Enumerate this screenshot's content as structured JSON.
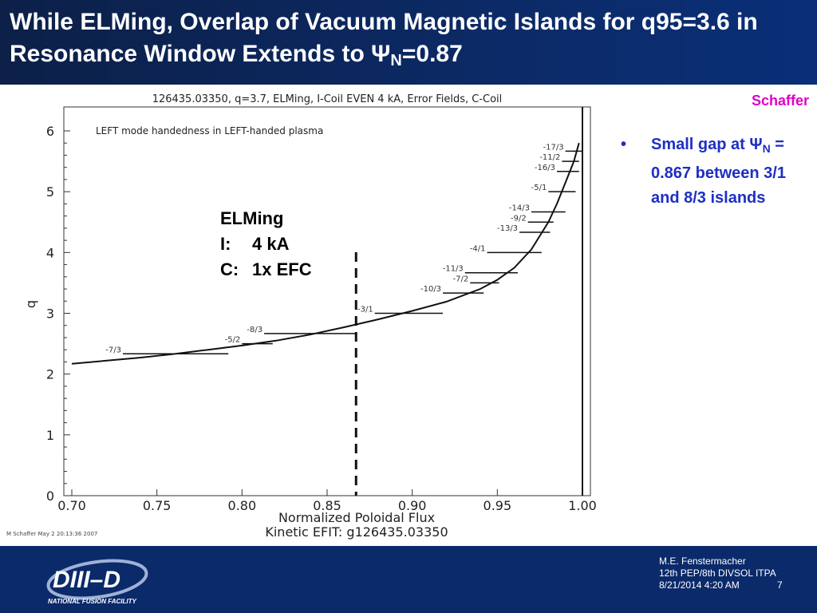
{
  "slide": {
    "title_prefix": "While ELMing, Overlap of Vacuum Magnetic Islands for q95=3.6 in Resonance Window Extends to ",
    "title_psi": "Ψ",
    "title_psi_sub": "N",
    "title_suffix": "=0.87",
    "author": "Schaffer",
    "bullet": {
      "marker": "•",
      "pre": "Small gap at ",
      "psi": "Ψ",
      "psi_sub": "N",
      "post": " = 0.867 between 3/1 and 8/3 islands"
    },
    "footer": {
      "line1": "M.E. Fenstermacher",
      "line2": "12th PEP/8th DIVSOL ITPA",
      "line3": "8/21/2014 4:20 AM",
      "page": "7",
      "logo_text": "DIII–D",
      "logo_subtext": "NATIONAL FUSION FACILITY"
    }
  },
  "chart_data": {
    "type": "scatter",
    "title": "126435.03350, q=3.7, ELMing, I-Coil EVEN 4 kA, Error Fields, C-Coil",
    "inner_title": "LEFT mode handedness in LEFT-handed plasma",
    "xlabel": "Normalized Poloidal Flux",
    "xlabel2": "Kinetic EFIT: g126435.03350",
    "ylabel": "q",
    "xlim": [
      0.7,
      1.0
    ],
    "ylim": [
      0,
      6
    ],
    "xticks": [
      "0.70",
      "0.75",
      "0.80",
      "0.85",
      "0.90",
      "0.95",
      "1.00"
    ],
    "yticks": [
      "0",
      "1",
      "2",
      "3",
      "4",
      "5",
      "6"
    ],
    "credit": "M Schaffer May  2 20:13:36 2007",
    "annotation_lines": [
      "ELMing",
      "I:",
      "4 kA",
      "C:",
      "1x EFC"
    ],
    "dashed_line_x": 0.867,
    "separatrix_x": 1.0,
    "q_profile": [
      {
        "x": 0.7,
        "y": 2.17
      },
      {
        "x": 0.72,
        "y": 2.22
      },
      {
        "x": 0.74,
        "y": 2.27
      },
      {
        "x": 0.76,
        "y": 2.33
      },
      {
        "x": 0.78,
        "y": 2.4
      },
      {
        "x": 0.8,
        "y": 2.47
      },
      {
        "x": 0.82,
        "y": 2.55
      },
      {
        "x": 0.84,
        "y": 2.65
      },
      {
        "x": 0.86,
        "y": 2.77
      },
      {
        "x": 0.88,
        "y": 2.9
      },
      {
        "x": 0.9,
        "y": 3.04
      },
      {
        "x": 0.92,
        "y": 3.19
      },
      {
        "x": 0.94,
        "y": 3.4
      },
      {
        "x": 0.95,
        "y": 3.55
      },
      {
        "x": 0.96,
        "y": 3.75
      },
      {
        "x": 0.97,
        "y": 4.05
      },
      {
        "x": 0.98,
        "y": 4.5
      },
      {
        "x": 0.985,
        "y": 4.8
      },
      {
        "x": 0.99,
        "y": 5.15
      },
      {
        "x": 0.995,
        "y": 5.5
      },
      {
        "x": 0.998,
        "y": 5.8
      }
    ],
    "islands": [
      {
        "label": "-7/3",
        "q": 2.333,
        "x_min": 0.73,
        "x_max": 0.792
      },
      {
        "label": "-5/2",
        "q": 2.5,
        "x_min": 0.8,
        "x_max": 0.818
      },
      {
        "label": "-8/3",
        "q": 2.667,
        "x_min": 0.813,
        "x_max": 0.867
      },
      {
        "label": "-3/1",
        "q": 3.0,
        "x_min": 0.878,
        "x_max": 0.918
      },
      {
        "label": "-10/3",
        "q": 3.333,
        "x_min": 0.918,
        "x_max": 0.942
      },
      {
        "label": "-7/2",
        "q": 3.5,
        "x_min": 0.934,
        "x_max": 0.951
      },
      {
        "label": "-11/3",
        "q": 3.667,
        "x_min": 0.931,
        "x_max": 0.962
      },
      {
        "label": "-4/1",
        "q": 4.0,
        "x_min": 0.944,
        "x_max": 0.976
      },
      {
        "label": "-13/3",
        "q": 4.333,
        "x_min": 0.963,
        "x_max": 0.981
      },
      {
        "label": "-9/2",
        "q": 4.5,
        "x_min": 0.968,
        "x_max": 0.983
      },
      {
        "label": "-14/3",
        "q": 4.667,
        "x_min": 0.97,
        "x_max": 0.99
      },
      {
        "label": "-5/1",
        "q": 5.0,
        "x_min": 0.98,
        "x_max": 0.996
      },
      {
        "label": "-16/3",
        "q": 5.333,
        "x_min": 0.985,
        "x_max": 0.998
      },
      {
        "label": "-11/2",
        "q": 5.5,
        "x_min": 0.988,
        "x_max": 0.998
      },
      {
        "label": "-17/3",
        "q": 5.667,
        "x_min": 0.99,
        "x_max": 1.0
      }
    ]
  }
}
